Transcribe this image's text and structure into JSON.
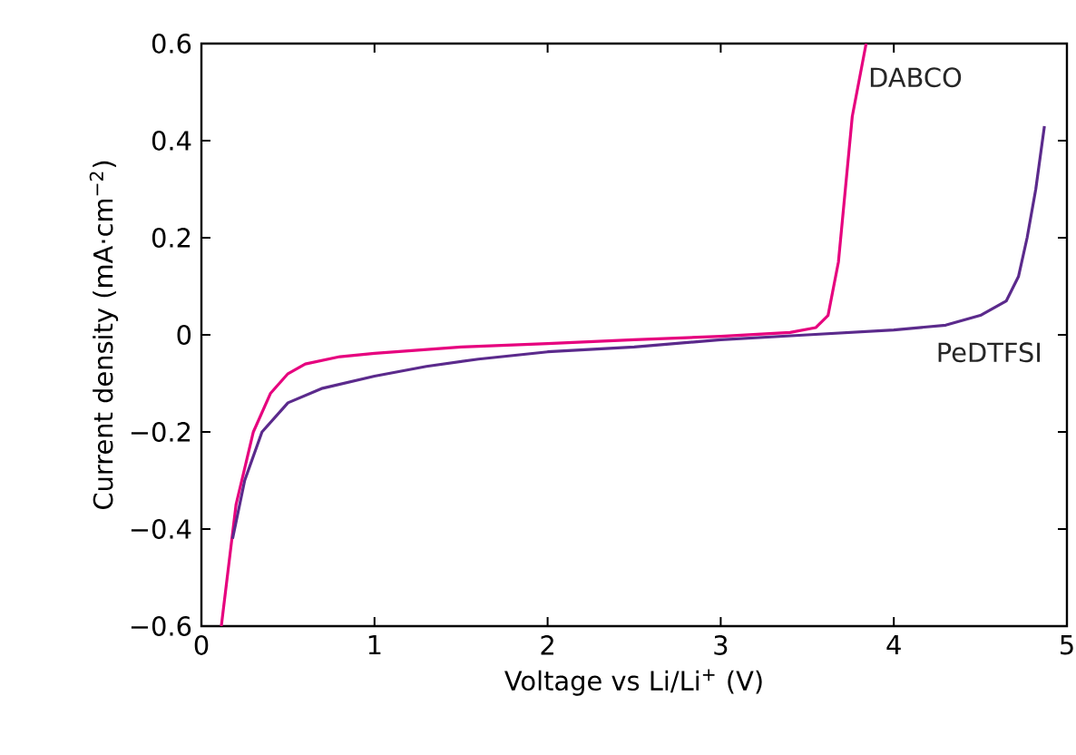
{
  "chart_data": {
    "type": "line",
    "xlabel": "Voltage vs Li/Li$^{+}$ (V)",
    "ylabel": "Current density (mA·cm$^{−2}$)",
    "xlim": [
      0,
      5
    ],
    "ylim": [
      -0.6,
      0.6
    ],
    "xticks": [
      0,
      1,
      2,
      3,
      4,
      5
    ],
    "yticks": [
      {
        "value": -0.6,
        "label": "−0.6"
      },
      {
        "value": -0.4,
        "label": "−0.4"
      },
      {
        "value": -0.2,
        "label": "−0.2"
      },
      0,
      0.2,
      0.4,
      0.6
    ],
    "grid": false,
    "legend": false,
    "marker": "none",
    "line_style": "solid",
    "series": [
      {
        "name": "DABCO",
        "color": "#e6007e",
        "x": [
          0.115,
          0.2,
          0.3,
          0.4,
          0.5,
          0.6,
          0.8,
          1,
          1.5,
          2,
          2.5,
          3,
          3.4,
          3.55,
          3.62,
          3.68,
          3.72,
          3.76,
          3.84
        ],
        "values": [
          -0.6,
          -0.35,
          -0.2,
          -0.12,
          -0.08,
          -0.06,
          -0.045,
          -0.038,
          -0.025,
          -0.018,
          -0.01,
          -0.003,
          0.005,
          0.015,
          0.04,
          0.15,
          0.3,
          0.45,
          0.6
        ]
      },
      {
        "name": "PeDTFSI",
        "color": "#5b2a8c",
        "x": [
          0.18,
          0.25,
          0.35,
          0.5,
          0.7,
          1,
          1.3,
          1.6,
          2,
          2.5,
          3,
          3.5,
          4,
          4.3,
          4.5,
          4.65,
          4.72,
          4.77,
          4.82,
          4.87
        ],
        "values": [
          -0.42,
          -0.3,
          -0.2,
          -0.14,
          -0.11,
          -0.085,
          -0.065,
          -0.05,
          -0.035,
          -0.025,
          -0.01,
          0,
          0.01,
          0.02,
          0.04,
          0.07,
          0.12,
          0.2,
          0.3,
          0.43
        ]
      }
    ]
  }
}
